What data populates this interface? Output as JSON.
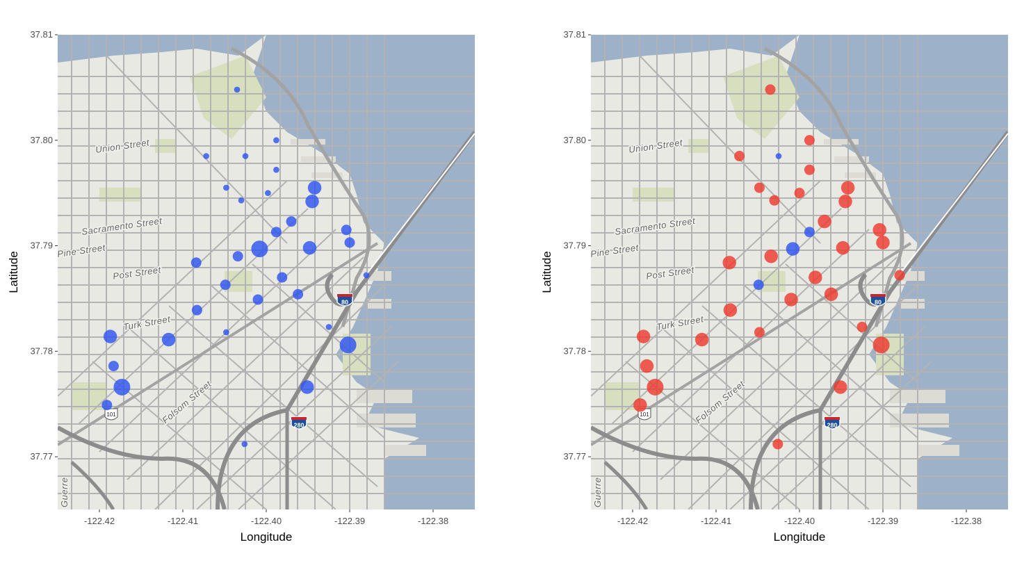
{
  "colors": {
    "water": "#9db1c8",
    "land": "#e9e9e3",
    "park": "#d8dfbf",
    "street": "#b3b3b3",
    "freeway": "#8c8c8c",
    "blue_point": "#2f55f0",
    "red_point": "#ee3b2e"
  },
  "map_labels": {
    "streets": [
      "Union Street",
      "Sacramento Street",
      "Pine Street",
      "Post Street",
      "Turk Street",
      "Folsom Street",
      "Guerre"
    ],
    "shields": [
      "80",
      "280",
      "101"
    ]
  },
  "chart_data": [
    {
      "type": "scatter",
      "title": "",
      "xlabel": "Longitude",
      "ylabel": "Latitude",
      "xlim": [
        -122.425,
        -122.375
      ],
      "ylim": [
        37.765,
        37.81
      ],
      "xticks": [
        -122.42,
        -122.41,
        -122.4,
        -122.39,
        -122.38
      ],
      "xtick_labels": [
        "-122.42",
        "-122.41",
        "-122.40",
        "-122.39",
        "-122.38"
      ],
      "yticks": [
        37.77,
        37.78,
        37.79,
        37.8,
        37.81
      ],
      "ytick_labels": [
        "37.77",
        "37.78",
        "37.79",
        "37.80",
        "37.81"
      ],
      "grid": false,
      "legend": "none",
      "points": [
        {
          "x": -122.4035,
          "y": 37.8048,
          "size": 0.15,
          "color": "blue"
        },
        {
          "x": -122.3988,
          "y": 37.8,
          "size": 0.15,
          "color": "blue"
        },
        {
          "x": -122.4072,
          "y": 37.7985,
          "size": 0.15,
          "color": "blue"
        },
        {
          "x": -122.4025,
          "y": 37.7985,
          "size": 0.15,
          "color": "blue"
        },
        {
          "x": -122.3988,
          "y": 37.7972,
          "size": 0.15,
          "color": "blue"
        },
        {
          "x": -122.4048,
          "y": 37.7955,
          "size": 0.15,
          "color": "blue"
        },
        {
          "x": -122.3998,
          "y": 37.795,
          "size": 0.15,
          "color": "blue"
        },
        {
          "x": -122.403,
          "y": 37.7943,
          "size": 0.15,
          "color": "blue"
        },
        {
          "x": -122.3942,
          "y": 37.7955,
          "size": 0.75,
          "color": "blue"
        },
        {
          "x": -122.3945,
          "y": 37.7942,
          "size": 0.75,
          "color": "blue"
        },
        {
          "x": -122.397,
          "y": 37.7923,
          "size": 0.5,
          "color": "blue"
        },
        {
          "x": -122.3988,
          "y": 37.7913,
          "size": 0.5,
          "color": "blue"
        },
        {
          "x": -122.3904,
          "y": 37.7915,
          "size": 0.5,
          "color": "blue"
        },
        {
          "x": -122.39,
          "y": 37.7903,
          "size": 0.5,
          "color": "blue"
        },
        {
          "x": -122.4008,
          "y": 37.7897,
          "size": 1.0,
          "color": "blue"
        },
        {
          "x": -122.3948,
          "y": 37.7898,
          "size": 0.75,
          "color": "blue"
        },
        {
          "x": -122.4034,
          "y": 37.789,
          "size": 0.5,
          "color": "blue"
        },
        {
          "x": -122.4084,
          "y": 37.7884,
          "size": 0.5,
          "color": "blue"
        },
        {
          "x": -122.3981,
          "y": 37.787,
          "size": 0.5,
          "color": "blue"
        },
        {
          "x": -122.4049,
          "y": 37.7863,
          "size": 0.5,
          "color": "blue"
        },
        {
          "x": -122.3962,
          "y": 37.7854,
          "size": 0.5,
          "color": "blue"
        },
        {
          "x": -122.401,
          "y": 37.7849,
          "size": 0.5,
          "color": "blue"
        },
        {
          "x": -122.388,
          "y": 37.7872,
          "size": 0.15,
          "color": "blue"
        },
        {
          "x": -122.4083,
          "y": 37.7839,
          "size": 0.5,
          "color": "blue"
        },
        {
          "x": -122.3925,
          "y": 37.7823,
          "size": 0.15,
          "color": "blue"
        },
        {
          "x": -122.4048,
          "y": 37.7818,
          "size": 0.15,
          "color": "blue"
        },
        {
          "x": -122.4187,
          "y": 37.7814,
          "size": 0.75,
          "color": "blue"
        },
        {
          "x": -122.4117,
          "y": 37.7811,
          "size": 0.75,
          "color": "blue"
        },
        {
          "x": -122.3902,
          "y": 37.7806,
          "size": 1.0,
          "color": "blue"
        },
        {
          "x": -122.4183,
          "y": 37.7786,
          "size": 0.5,
          "color": "blue"
        },
        {
          "x": -122.4173,
          "y": 37.7766,
          "size": 1.0,
          "color": "blue"
        },
        {
          "x": -122.3951,
          "y": 37.7766,
          "size": 0.75,
          "color": "blue"
        },
        {
          "x": -122.4191,
          "y": 37.7749,
          "size": 0.5,
          "color": "blue"
        },
        {
          "x": -122.4026,
          "y": 37.7712,
          "size": 0.15,
          "color": "blue"
        }
      ]
    },
    {
      "type": "scatter",
      "title": "",
      "xlabel": "Longitude",
      "ylabel": "Latitude",
      "xlim": [
        -122.425,
        -122.375
      ],
      "ylim": [
        37.765,
        37.81
      ],
      "xticks": [
        -122.42,
        -122.41,
        -122.4,
        -122.39,
        -122.38
      ],
      "xtick_labels": [
        "-122.42",
        "-122.41",
        "-122.40",
        "-122.39",
        "-122.38"
      ],
      "yticks": [
        37.77,
        37.78,
        37.79,
        37.8,
        37.81
      ],
      "ytick_labels": [
        "37.77",
        "37.78",
        "37.79",
        "37.80",
        "37.81"
      ],
      "grid": false,
      "legend": "none",
      "points": [
        {
          "x": -122.4035,
          "y": 37.8048,
          "size": 0.5,
          "color": "red"
        },
        {
          "x": -122.3988,
          "y": 37.8,
          "size": 0.5,
          "color": "red"
        },
        {
          "x": -122.4072,
          "y": 37.7985,
          "size": 0.5,
          "color": "red"
        },
        {
          "x": -122.4025,
          "y": 37.7985,
          "size": 0.15,
          "color": "blue"
        },
        {
          "x": -122.3988,
          "y": 37.7972,
          "size": 0.5,
          "color": "red"
        },
        {
          "x": -122.4048,
          "y": 37.7955,
          "size": 0.5,
          "color": "red"
        },
        {
          "x": -122.4,
          "y": 37.795,
          "size": 0.5,
          "color": "red"
        },
        {
          "x": -122.403,
          "y": 37.7943,
          "size": 0.5,
          "color": "red"
        },
        {
          "x": -122.3942,
          "y": 37.7955,
          "size": 0.75,
          "color": "red"
        },
        {
          "x": -122.3945,
          "y": 37.7942,
          "size": 0.75,
          "color": "red"
        },
        {
          "x": -122.397,
          "y": 37.7923,
          "size": 0.75,
          "color": "red"
        },
        {
          "x": -122.3988,
          "y": 37.7913,
          "size": 0.5,
          "color": "blue"
        },
        {
          "x": -122.3904,
          "y": 37.7915,
          "size": 0.75,
          "color": "red"
        },
        {
          "x": -122.39,
          "y": 37.7903,
          "size": 0.75,
          "color": "red"
        },
        {
          "x": -122.4008,
          "y": 37.7897,
          "size": 0.75,
          "color": "blue"
        },
        {
          "x": -122.3948,
          "y": 37.7898,
          "size": 0.75,
          "color": "red"
        },
        {
          "x": -122.4034,
          "y": 37.789,
          "size": 0.75,
          "color": "red"
        },
        {
          "x": -122.4084,
          "y": 37.7884,
          "size": 0.75,
          "color": "red"
        },
        {
          "x": -122.3981,
          "y": 37.787,
          "size": 0.75,
          "color": "red"
        },
        {
          "x": -122.4049,
          "y": 37.7863,
          "size": 0.5,
          "color": "blue"
        },
        {
          "x": -122.3962,
          "y": 37.7854,
          "size": 0.75,
          "color": "red"
        },
        {
          "x": -122.401,
          "y": 37.7849,
          "size": 0.75,
          "color": "red"
        },
        {
          "x": -122.388,
          "y": 37.7872,
          "size": 0.5,
          "color": "red"
        },
        {
          "x": -122.4083,
          "y": 37.7839,
          "size": 0.75,
          "color": "red"
        },
        {
          "x": -122.3925,
          "y": 37.7823,
          "size": 0.5,
          "color": "red"
        },
        {
          "x": -122.4048,
          "y": 37.7818,
          "size": 0.5,
          "color": "red"
        },
        {
          "x": -122.4187,
          "y": 37.7814,
          "size": 0.75,
          "color": "red"
        },
        {
          "x": -122.4117,
          "y": 37.7811,
          "size": 0.75,
          "color": "red"
        },
        {
          "x": -122.3902,
          "y": 37.7806,
          "size": 1.0,
          "color": "red"
        },
        {
          "x": -122.4183,
          "y": 37.7786,
          "size": 0.75,
          "color": "red"
        },
        {
          "x": -122.4173,
          "y": 37.7766,
          "size": 1.0,
          "color": "red"
        },
        {
          "x": -122.3951,
          "y": 37.7766,
          "size": 0.75,
          "color": "red"
        },
        {
          "x": -122.4191,
          "y": 37.7749,
          "size": 0.75,
          "color": "red"
        },
        {
          "x": -122.4026,
          "y": 37.7712,
          "size": 0.5,
          "color": "red"
        }
      ]
    }
  ]
}
